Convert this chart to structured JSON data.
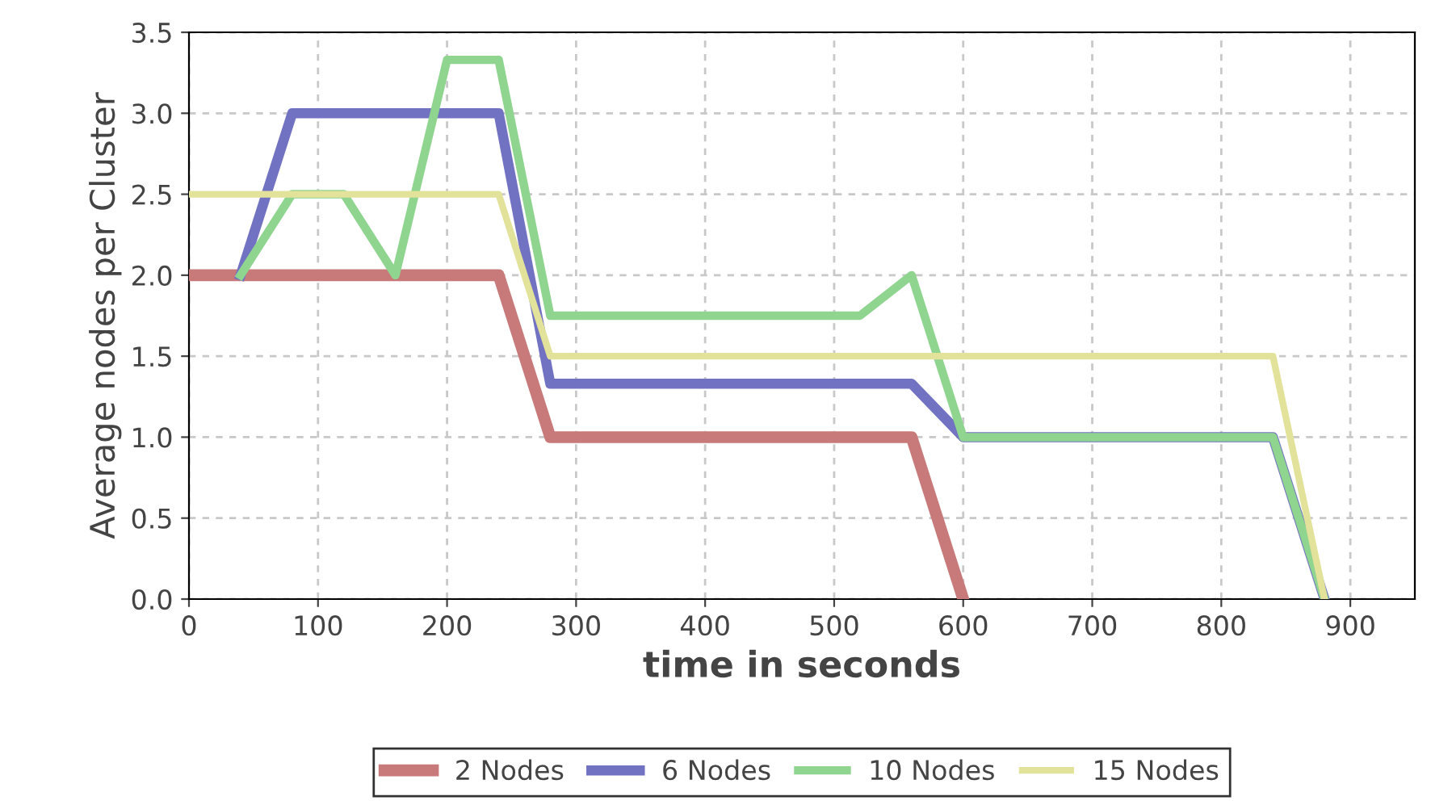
{
  "chart_data": {
    "type": "line",
    "xlabel": "time in seconds",
    "ylabel": "Average nodes per Cluster",
    "xlim": [
      0,
      950
    ],
    "xticks": [
      0,
      100,
      200,
      300,
      400,
      500,
      600,
      700,
      800,
      900
    ],
    "ylim": [
      0,
      3.5
    ],
    "yticks": [
      {
        "value": 0,
        "label": "0.0"
      },
      {
        "value": 0.5,
        "label": "0.5"
      },
      {
        "value": 1,
        "label": "1.0"
      },
      {
        "value": 1.5,
        "label": "1.5"
      },
      {
        "value": 2,
        "label": "2.0"
      },
      {
        "value": 2.5,
        "label": "2.5"
      },
      {
        "value": 3,
        "label": "3.0"
      },
      {
        "value": 3.5,
        "label": "3.5"
      }
    ],
    "grid": true,
    "legend": "bottom",
    "marker": "none",
    "line_style": "solid",
    "series": [
      {
        "name": "2 Nodes",
        "color": "#c87a7a",
        "x": [
          0,
          240,
          280,
          560,
          600
        ],
        "values": [
          2,
          2,
          1,
          1,
          0
        ]
      },
      {
        "name": "6 Nodes",
        "color": "#7272c2",
        "x": [
          40,
          80,
          240,
          280,
          560,
          600,
          840,
          880
        ],
        "values": [
          2,
          3,
          3,
          1.33,
          1.33,
          1,
          1,
          0
        ]
      },
      {
        "name": "10 Nodes",
        "color": "#8fd48f",
        "x": [
          40,
          80,
          120,
          160,
          200,
          240,
          280,
          520,
          560,
          600,
          840,
          880
        ],
        "values": [
          2,
          2.5,
          2.5,
          2,
          3.33,
          3.33,
          1.75,
          1.75,
          2,
          1,
          1,
          0
        ]
      },
      {
        "name": "15 Nodes",
        "color": "#e2e29a",
        "x": [
          0,
          240,
          280,
          840,
          880
        ],
        "values": [
          2.5,
          2.5,
          1.5,
          1.5,
          0
        ]
      }
    ]
  }
}
